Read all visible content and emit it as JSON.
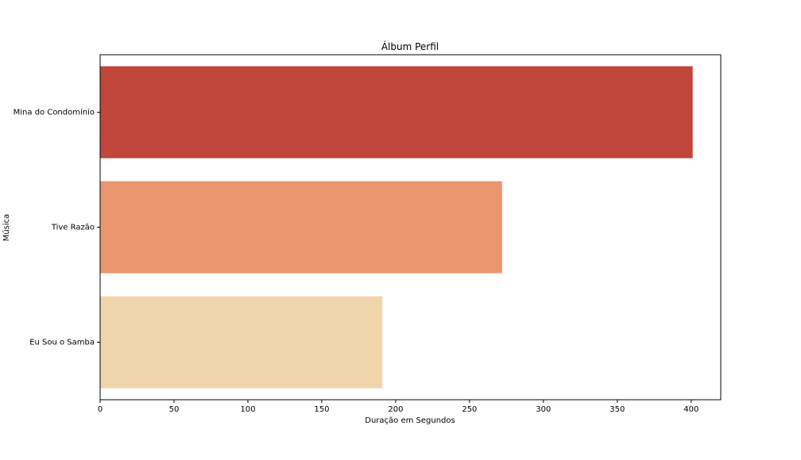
{
  "chart_data": {
    "type": "bar",
    "orientation": "horizontal",
    "title": "Álbum Perfil",
    "xlabel": "Duração em Segundos",
    "ylabel": "Música",
    "categories": [
      "Mina do Condomínio",
      "Tive Razão",
      "Eu Sou o Samba"
    ],
    "values": [
      401,
      272,
      191
    ],
    "colors": [
      "#c0453a",
      "#e9966f",
      "#f0d4ab"
    ],
    "xlim": [
      0,
      420
    ],
    "xticks": [
      0,
      50,
      100,
      150,
      200,
      250,
      300,
      350,
      400
    ],
    "grid": false,
    "legend": "none"
  }
}
